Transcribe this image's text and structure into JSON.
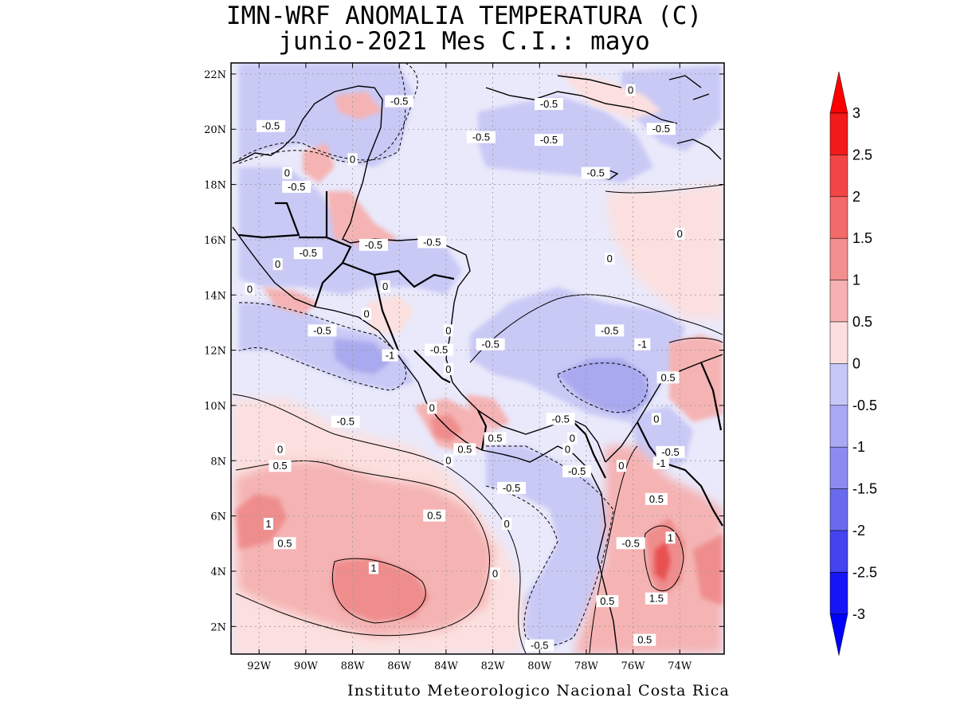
{
  "title": {
    "line1": "IMN-WRF  ANOMALIA TEMPERATURA (C)",
    "line2": "junio-2021 Mes C.I.: mayo"
  },
  "footer": "Instituto Meteorologico Nacional Costa Rica",
  "map": {
    "lon_range": [
      -93.2,
      -72.1
    ],
    "lat_range": [
      1.0,
      22.4
    ],
    "lat_ticks": [
      {
        "value": 22,
        "label": "22N"
      },
      {
        "value": 20,
        "label": "20N"
      },
      {
        "value": 18,
        "label": "18N"
      },
      {
        "value": 16,
        "label": "16N"
      },
      {
        "value": 14,
        "label": "14N"
      },
      {
        "value": 12,
        "label": "12N"
      },
      {
        "value": 10,
        "label": "10N"
      },
      {
        "value": 8,
        "label": "8N"
      },
      {
        "value": 6,
        "label": "6N"
      },
      {
        "value": 4,
        "label": "4N"
      },
      {
        "value": 2,
        "label": "2N"
      }
    ],
    "lon_ticks": [
      {
        "value": -92,
        "label": "92W"
      },
      {
        "value": -90,
        "label": "90W"
      },
      {
        "value": -88,
        "label": "88W"
      },
      {
        "value": -86,
        "label": "86W"
      },
      {
        "value": -84,
        "label": "84W"
      },
      {
        "value": -82,
        "label": "82W"
      },
      {
        "value": -80,
        "label": "80W"
      },
      {
        "value": -78,
        "label": "78W"
      },
      {
        "value": -76,
        "label": "76W"
      },
      {
        "value": -74,
        "label": "74W"
      }
    ],
    "contour_labels": [
      {
        "text": "-0.5",
        "lon": -91.5,
        "lat": 20.1
      },
      {
        "text": "-0.5",
        "lon": -86.0,
        "lat": 21.0
      },
      {
        "text": "-0.5",
        "lon": -82.5,
        "lat": 19.7
      },
      {
        "text": "-0.5",
        "lon": -79.6,
        "lat": 20.9
      },
      {
        "text": "-0.5",
        "lon": -79.6,
        "lat": 19.6
      },
      {
        "text": "0",
        "lon": -76.1,
        "lat": 21.4
      },
      {
        "text": "-0.5",
        "lon": -74.8,
        "lat": 20.0
      },
      {
        "text": "-0.5",
        "lon": -77.6,
        "lat": 18.4
      },
      {
        "text": "0",
        "lon": -90.8,
        "lat": 18.4
      },
      {
        "text": "-0.5",
        "lon": -90.4,
        "lat": 17.9
      },
      {
        "text": "0",
        "lon": -88.0,
        "lat": 18.9
      },
      {
        "text": "-0.5",
        "lon": -87.1,
        "lat": 15.8
      },
      {
        "text": "-0.5",
        "lon": -84.6,
        "lat": 15.9
      },
      {
        "text": "-0.5",
        "lon": -89.9,
        "lat": 15.5
      },
      {
        "text": "0",
        "lon": -91.2,
        "lat": 15.1
      },
      {
        "text": "0",
        "lon": -92.4,
        "lat": 14.2
      },
      {
        "text": "0",
        "lon": -86.6,
        "lat": 14.3
      },
      {
        "text": "0",
        "lon": -87.4,
        "lat": 13.3
      },
      {
        "text": "-0.5",
        "lon": -89.3,
        "lat": 12.7
      },
      {
        "text": "-1",
        "lon": -86.4,
        "lat": 11.8
      },
      {
        "text": "-0.5",
        "lon": -84.3,
        "lat": 12.0
      },
      {
        "text": "0",
        "lon": -83.9,
        "lat": 12.7
      },
      {
        "text": "0",
        "lon": -83.9,
        "lat": 11.3
      },
      {
        "text": "-0.5",
        "lon": -82.1,
        "lat": 12.2
      },
      {
        "text": "-0.5",
        "lon": -77.0,
        "lat": 12.7
      },
      {
        "text": "-1",
        "lon": -75.6,
        "lat": 12.2
      },
      {
        "text": "0",
        "lon": -77.0,
        "lat": 15.3
      },
      {
        "text": "0",
        "lon": -74.0,
        "lat": 16.2
      },
      {
        "text": "0.5",
        "lon": -74.5,
        "lat": 11.0
      },
      {
        "text": "0",
        "lon": -75.0,
        "lat": 9.5
      },
      {
        "text": "-0.5",
        "lon": -74.4,
        "lat": 8.3
      },
      {
        "text": "-1",
        "lon": -74.8,
        "lat": 7.9
      },
      {
        "text": "0",
        "lon": -76.5,
        "lat": 7.8
      },
      {
        "text": "0.5",
        "lon": -75.0,
        "lat": 6.6
      },
      {
        "text": "1",
        "lon": -74.4,
        "lat": 5.2
      },
      {
        "text": "1.5",
        "lon": -75.0,
        "lat": 3.0
      },
      {
        "text": "0.5",
        "lon": -77.1,
        "lat": 2.9
      },
      {
        "text": "0.5",
        "lon": -75.5,
        "lat": 1.5
      },
      {
        "text": "-0.5",
        "lon": -76.1,
        "lat": 5.0
      },
      {
        "text": "-0.5",
        "lon": -79.1,
        "lat": 9.5
      },
      {
        "text": "0",
        "lon": -78.6,
        "lat": 8.8
      },
      {
        "text": "0",
        "lon": -78.8,
        "lat": 8.4
      },
      {
        "text": "-0.5",
        "lon": -78.4,
        "lat": 7.6
      },
      {
        "text": "0.5",
        "lon": -81.9,
        "lat": 8.8
      },
      {
        "text": "-0.5",
        "lon": -81.2,
        "lat": 7.0
      },
      {
        "text": "0",
        "lon": -84.6,
        "lat": 9.9
      },
      {
        "text": "0.5",
        "lon": -83.2,
        "lat": 8.4
      },
      {
        "text": "0",
        "lon": -83.9,
        "lat": 8.0
      },
      {
        "text": "-0.5",
        "lon": -88.3,
        "lat": 9.4
      },
      {
        "text": "0",
        "lon": -91.1,
        "lat": 8.4
      },
      {
        "text": "0.5",
        "lon": -91.1,
        "lat": 7.8
      },
      {
        "text": "1",
        "lon": -91.6,
        "lat": 5.7
      },
      {
        "text": "0.5",
        "lon": -90.9,
        "lat": 5.0
      },
      {
        "text": "1",
        "lon": -87.1,
        "lat": 4.1
      },
      {
        "text": "0.5",
        "lon": -84.5,
        "lat": 6.0
      },
      {
        "text": "0",
        "lon": -81.4,
        "lat": 5.7
      },
      {
        "text": "0",
        "lon": -81.9,
        "lat": 3.9
      },
      {
        "text": "-0.5",
        "lon": -80.0,
        "lat": 1.3
      }
    ]
  },
  "colorbar": {
    "levels": [
      {
        "label": "3",
        "color": "#f21a1a"
      },
      {
        "label": "2.5",
        "color": "#f24545"
      },
      {
        "label": "2",
        "color": "#f36a6a"
      },
      {
        "label": "1.5",
        "color": "#f38f8f"
      },
      {
        "label": "1",
        "color": "#f6b2b2"
      },
      {
        "label": "0.5",
        "color": "#fcdede"
      },
      {
        "label": "0",
        "color": "#eaeafc"
      },
      {
        "label": "-0.5",
        "color": "#c8c8f8"
      },
      {
        "label": "-1",
        "color": "#a9a9f4"
      },
      {
        "label": "-1.5",
        "color": "#8b8bf1"
      },
      {
        "label": "-2",
        "color": "#6a6aef"
      },
      {
        "label": "-2.5",
        "color": "#4343f0"
      },
      {
        "label": "-3",
        "color": "#1515f5"
      }
    ],
    "top_arrow_color": "#ff0000",
    "bottom_arrow_color": "#0000ff"
  },
  "colors": {
    "warm_light": "#fbe0df",
    "warm_mid": "#f5b3b3",
    "warm_strong": "#ef8d8d",
    "warm_peak": "#e85050",
    "cool_light": "#e8e8fc",
    "cool_mid": "#c9c9f6",
    "cool_strong": "#a9a9ef",
    "cool_deep": "#8c8cee"
  }
}
